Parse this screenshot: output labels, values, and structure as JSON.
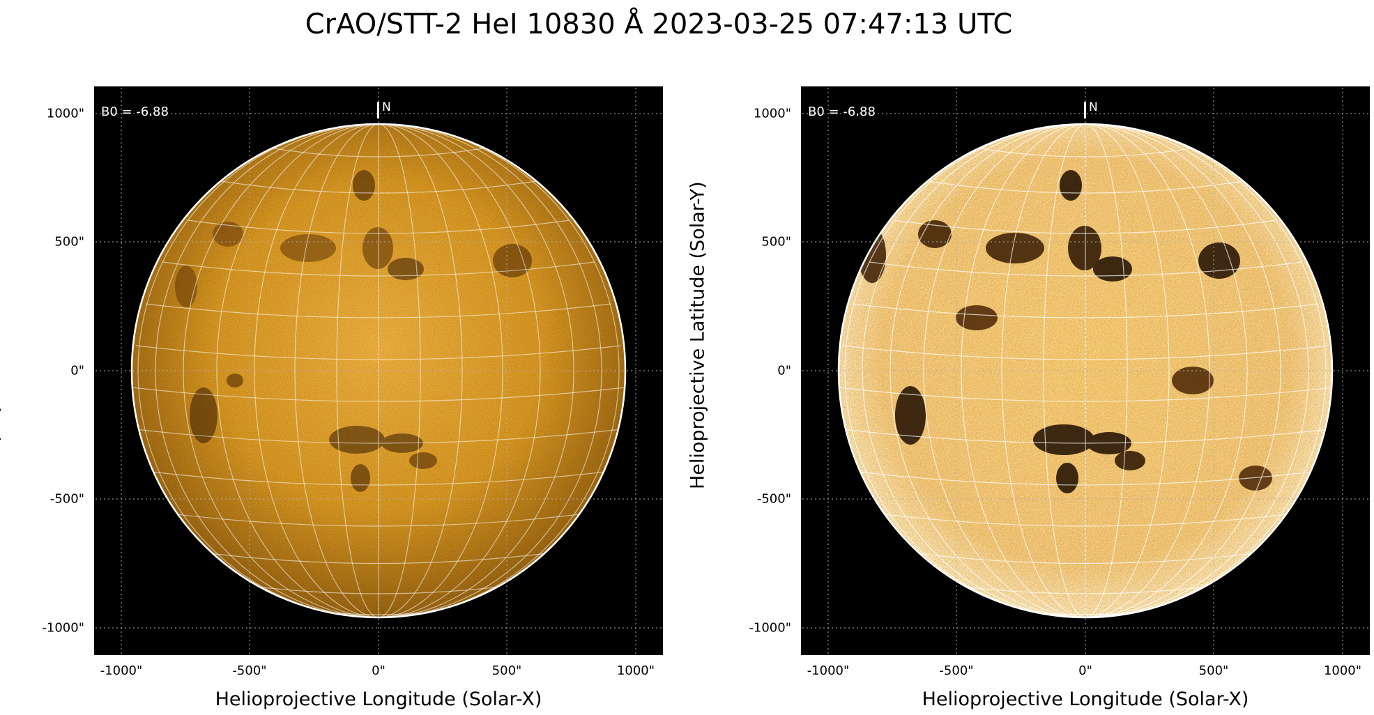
{
  "title": "CrAO/STT-2 HeI 10830 Å 2023-03-25 07:47:13 UTC",
  "axes": {
    "xlabel": "Helioprojective Longitude (Solar-X)",
    "ylabel": "Helioprojective Latitude (Solar-Y)",
    "xticks": [
      "-1000\"",
      "-500\"",
      "0\"",
      "500\"",
      "1000\""
    ],
    "yticks": [
      "1000\"",
      "500\"",
      "0\"",
      "-500\"",
      "-1000\""
    ],
    "tick_values": [
      -1000,
      -500,
      0,
      500,
      1000
    ],
    "xlim": [
      -1100,
      1100
    ],
    "ylim": [
      -1100,
      1100
    ],
    "solar_radius_arcsec": 960
  },
  "annotations": {
    "b0": "B0 = -6.88",
    "north": "N"
  },
  "panels": [
    {
      "name": "left",
      "style": "normal-contrast",
      "disk_color": "#d9961e"
    },
    {
      "name": "right",
      "style": "high-contrast",
      "disk_color": "#f6cf80"
    }
  ],
  "colors": {
    "background": "#000000",
    "grid": "#ffffff",
    "limb": "#ffffff"
  }
}
